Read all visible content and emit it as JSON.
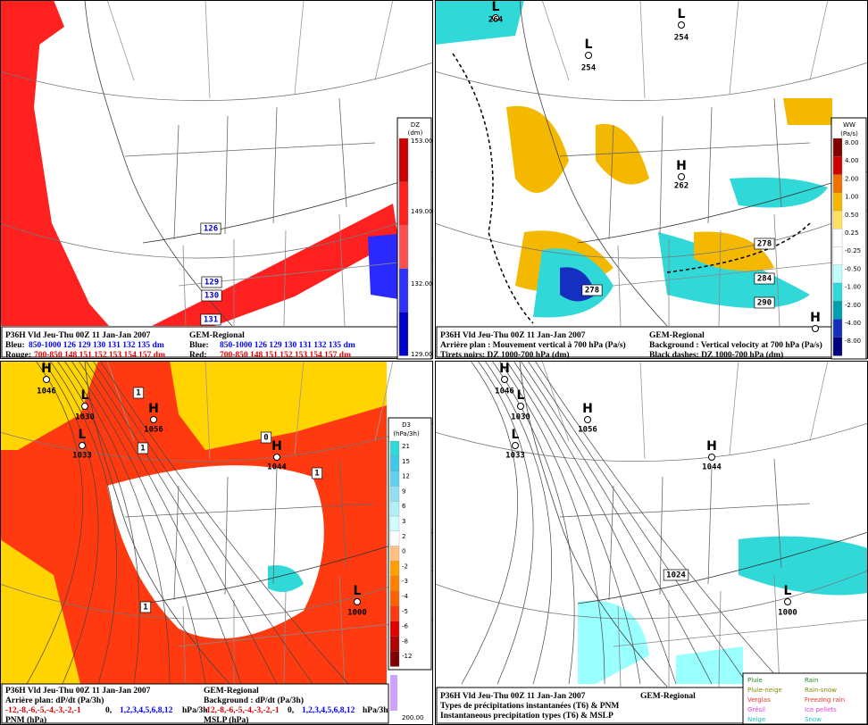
{
  "panels": [
    {
      "caption": {
        "left": [
          "P36H Vld Jeu-Thu 00Z 11 Jan-Jan 2007",
          "Bleu:",
          "850-1000 126 129 130 131 132 135 dm",
          "Rouge:",
          "700-850 148 151 152 153 154 157 dm"
        ],
        "right": [
          "GEM-Regional",
          "Blue:",
          "850-1000 126 129 130 131 132 135 dm",
          "Red:",
          "700-850 148 151 152 153 154 157 dm"
        ]
      },
      "colorbar": {
        "title": [
          "DZ",
          "(dm)"
        ],
        "ticks": [
          "153.00",
          "149.00",
          "132.00",
          "129.00"
        ]
      },
      "contour_labels": [
        "126",
        "129",
        "130",
        "131"
      ]
    },
    {
      "caption": {
        "left": [
          "P36H Vld Jeu-Thu 00Z 11 Jan-Jan 2007",
          "Arrière plan : Mouvement vertical à 700 hPa (Pa/s)",
          "Tirets noirs: DZ 1000-700 hPa (dm)"
        ],
        "right": [
          "GEM-Regional",
          "Background : Vertical velocity at 700 hPa (Pa/s)",
          "Black dashes: DZ 1000-700 hPa (dm)"
        ]
      },
      "colorbar": {
        "title": [
          "WW",
          "(Pa/s)"
        ],
        "ticks": [
          "8.00",
          "4.00",
          "2.00",
          "1.00",
          "0.50",
          "0.25",
          "-0.25",
          "-0.50",
          "-1.00",
          "-2.00",
          "-4.00",
          "-8.00"
        ]
      },
      "centers": [
        {
          "kind": "L",
          "value": "264"
        },
        {
          "kind": "L",
          "value": "254"
        },
        {
          "kind": "L",
          "value": "254"
        },
        {
          "kind": "H",
          "value": "262"
        },
        {
          "kind": "H"
        }
      ],
      "contour_labels": [
        "278",
        "278",
        "284",
        "290"
      ]
    },
    {
      "caption": {
        "left": [
          "P36H Vld Jeu-Thu 00Z 11 Jan-Jan 2007",
          "Arrière plan: dP/dt (Pa/3h)",
          "-12,-8,-6,-5,-4,-3,-2,-1",
          "0,",
          "1,2,3,4,5,6,8,12",
          "hPa/3h",
          "PNM (hPa)"
        ],
        "right": [
          "GEM-Regional",
          "Background : dP/dt (Pa/3h)",
          "-12,-8,-6,-5,-4,-3,-2,-1",
          "0,",
          "1,2,3,4,5,6,8,12",
          "hPa/3h",
          "MSLP (hPa)"
        ]
      },
      "colorbar": {
        "title": [
          "D3",
          "(hPa/3h)"
        ],
        "ticks": [
          "21",
          "15",
          "12",
          "9",
          "6",
          "3",
          "2",
          "0",
          "-2",
          "-3",
          "-4",
          "-5",
          "-6",
          "-8",
          "-12"
        ],
        "extra": "200.00"
      },
      "centers": [
        {
          "kind": "H",
          "value": "1046"
        },
        {
          "kind": "L",
          "value": "1030"
        },
        {
          "kind": "H",
          "value": "1056"
        },
        {
          "kind": "L",
          "value": "1033"
        },
        {
          "kind": "H",
          "value": "1044"
        },
        {
          "kind": "L",
          "value": "1000"
        }
      ],
      "contour_labels": [
        "1",
        "1",
        "0",
        "1",
        "1"
      ]
    },
    {
      "caption": {
        "left": [
          "P36H Vld Jeu-Thu 00Z 11 Jan-Jan 2007",
          "Types de précipitations instantanées (T6) & PNM",
          "Instantaneous precipitation types (T6) & MSLP"
        ],
        "right": [
          "GEM-Regional"
        ]
      },
      "legend": [
        {
          "fr": "Pluie",
          "en": "Rain",
          "color": "#228b22"
        },
        {
          "fr": "Pluie-neige",
          "en": "Rain-snow",
          "color": "#8b8b00"
        },
        {
          "fr": "Verglas",
          "en": "Freezing rain",
          "color": "#ff3030"
        },
        {
          "fr": "Grésil",
          "en": "Ice pellets",
          "color": "#e040e0"
        },
        {
          "fr": "Neige",
          "en": "Snow",
          "color": "#20c0c0"
        }
      ],
      "centers": [
        {
          "kind": "H",
          "value": "1046"
        },
        {
          "kind": "L",
          "value": "1030"
        },
        {
          "kind": "H",
          "value": "1056"
        },
        {
          "kind": "L",
          "value": "1033"
        },
        {
          "kind": "H",
          "value": "1044"
        },
        {
          "kind": "L",
          "value": "1000"
        }
      ],
      "contour_labels": [
        "1024"
      ]
    }
  ]
}
